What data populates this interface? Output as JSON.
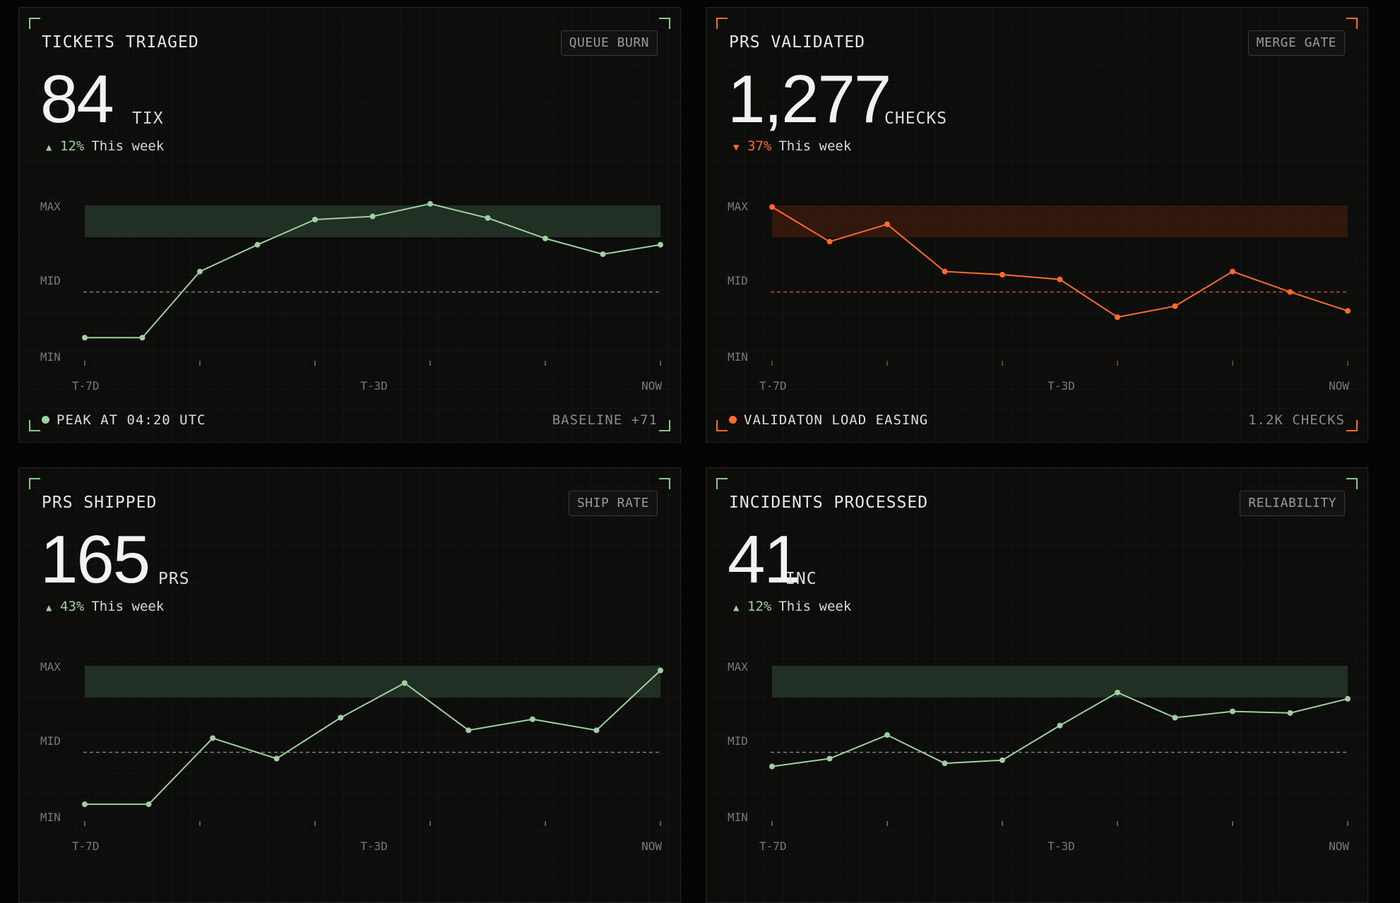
{
  "colors": {
    "green": "#9ed19e",
    "orange": "#ff6a2e",
    "band_green": "#26362a",
    "band_orange": "#3a1a0e"
  },
  "cards": [
    {
      "title": "TICKETS TRIAGED",
      "tag": "QUEUE BURN",
      "value": "84",
      "unit": "TIX",
      "change_direction": "up",
      "change_arrow": "▲",
      "change_pct": "12%",
      "change_period": "This week",
      "footer_left": "PEAK AT 04:20 UTC",
      "footer_right": "BASELINE +71"
    },
    {
      "title": "PRS VALIDATED",
      "tag": "MERGE GATE",
      "value": "1,277",
      "unit": "CHECKS",
      "change_direction": "down",
      "change_arrow": "▼",
      "change_pct": "37%",
      "change_period": "This week",
      "footer_left": "VALIDATON LOAD EASING",
      "footer_right": "1.2K CHECKS"
    },
    {
      "title": "PRS SHIPPED",
      "tag": "SHIP RATE",
      "value": "165",
      "unit": "PRS",
      "change_direction": "up",
      "change_arrow": "▲",
      "change_pct": "43%",
      "change_period": "This week",
      "footer_left": "",
      "footer_right": ""
    },
    {
      "title": "INCIDENTS PROCESSED",
      "tag": "RELIABILITY",
      "value": "41",
      "unit": "INC",
      "change_direction": "up",
      "change_arrow": "▲",
      "change_pct": "12%",
      "change_period": "This week",
      "footer_left": "",
      "footer_right": ""
    }
  ],
  "chart_data": [
    {
      "type": "line",
      "color": "green",
      "y_labels": [
        "MAX",
        "MID",
        "MIN"
      ],
      "x_labels": [
        "T-7D",
        "T-3D",
        "NOW"
      ],
      "ylim": [
        0,
        1
      ],
      "baseline": 0.41,
      "band": [
        0.78,
        1.0
      ],
      "values": [
        0.12,
        0.12,
        0.54,
        0.71,
        0.87,
        0.89,
        0.97,
        0.88,
        0.75,
        0.65,
        0.71
      ]
    },
    {
      "type": "line",
      "color": "orange",
      "y_labels": [
        "MAX",
        "MID",
        "MIN"
      ],
      "x_labels": [
        "T-7D",
        "T-3D",
        "NOW"
      ],
      "ylim": [
        0,
        1
      ],
      "baseline": 0.41,
      "band": [
        0.78,
        1.0
      ],
      "values": [
        0.95,
        0.73,
        0.84,
        0.54,
        0.52,
        0.49,
        0.25,
        0.32,
        0.54,
        0.41,
        0.29
      ]
    },
    {
      "type": "line",
      "color": "green",
      "y_labels": [
        "MAX",
        "MID",
        "MIN"
      ],
      "x_labels": [
        "T-7D",
        "T-3D",
        "NOW"
      ],
      "ylim": [
        0,
        1
      ],
      "baseline": 0.41,
      "band": [
        0.78,
        1.0
      ],
      "values": [
        0.08,
        0.08,
        0.5,
        0.37,
        0.63,
        0.85,
        0.55,
        0.62,
        0.55,
        0.93
      ]
    },
    {
      "type": "line",
      "color": "green",
      "y_labels": [
        "MAX",
        "MID",
        "MIN"
      ],
      "x_labels": [
        "T-7D",
        "T-3D",
        "NOW"
      ],
      "ylim": [
        0,
        1
      ],
      "baseline": 0.41,
      "band": [
        0.78,
        1.0
      ],
      "values": [
        0.32,
        0.37,
        0.52,
        0.34,
        0.36,
        0.58,
        0.79,
        0.63,
        0.67,
        0.66,
        0.75
      ]
    }
  ]
}
